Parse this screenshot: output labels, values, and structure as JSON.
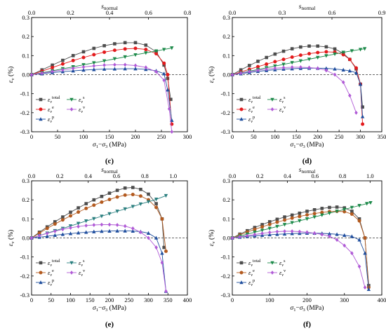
{
  "chart_data": [
    {
      "type": "line",
      "panel_label": "(c)",
      "xlabel": "σ1−σ3 (MPa)",
      "ylabel": "εv (%)",
      "top_axis_label": "snormal",
      "xlim": [
        0,
        300
      ],
      "ylim": [
        -0.3,
        0.3
      ],
      "x_ticks": [
        0,
        50,
        100,
        150,
        200,
        250,
        300
      ],
      "y_ticks": [
        -0.3,
        -0.2,
        -0.1,
        0.0,
        0.1,
        0.2,
        0.3
      ],
      "top_ticks": [
        0.0,
        0.2,
        0.4,
        0.6,
        0.8
      ],
      "top_xlim": [
        0,
        0.8
      ],
      "top_ratio": 0.00272,
      "legend": "bottom-left",
      "series": [
        {
          "name": "εv total",
          "color": "#4d4d4d",
          "marker": "square",
          "x": [
            0,
            20,
            40,
            60,
            80,
            100,
            120,
            140,
            160,
            180,
            200,
            220,
            240,
            255,
            262,
            268
          ],
          "y": [
            0,
            0.025,
            0.05,
            0.075,
            0.1,
            0.12,
            0.138,
            0.152,
            0.162,
            0.168,
            0.168,
            0.155,
            0.12,
            0.05,
            -0.02,
            -0.13
          ]
        },
        {
          "name": "εv e",
          "color": "#e31a1c",
          "marker": "circle",
          "x": [
            0,
            20,
            40,
            60,
            80,
            100,
            120,
            140,
            160,
            180,
            200,
            220,
            240,
            255,
            262,
            270
          ],
          "y": [
            0,
            0.018,
            0.037,
            0.056,
            0.074,
            0.09,
            0.105,
            0.118,
            0.128,
            0.135,
            0.138,
            0.132,
            0.11,
            0.06,
            0.0,
            -0.26
          ]
        },
        {
          "name": "εv p",
          "color": "#1f4e9e",
          "marker": "triangle-up",
          "x": [
            0,
            20,
            40,
            60,
            80,
            100,
            120,
            140,
            160,
            180,
            200,
            220,
            240,
            255,
            262,
            270
          ],
          "y": [
            0,
            0.005,
            0.011,
            0.016,
            0.02,
            0.024,
            0.027,
            0.029,
            0.03,
            0.031,
            0.031,
            0.028,
            0.02,
            0.005,
            -0.08,
            -0.24
          ]
        },
        {
          "name": "εv s",
          "color": "#1d8a4a",
          "marker": "triangle-down",
          "x": [
            0,
            20,
            40,
            60,
            80,
            100,
            120,
            140,
            160,
            180,
            200,
            220,
            240,
            255,
            270
          ],
          "y": [
            0,
            0.01,
            0.02,
            0.031,
            0.041,
            0.052,
            0.062,
            0.072,
            0.083,
            0.093,
            0.104,
            0.114,
            0.124,
            0.132,
            0.14
          ]
        },
        {
          "name": "εv v",
          "color": "#b05ad6",
          "marker": "diamond",
          "x": [
            0,
            20,
            40,
            60,
            80,
            100,
            120,
            140,
            160,
            180,
            200,
            220,
            240,
            255,
            265,
            270
          ],
          "y": [
            0,
            0.008,
            0.017,
            0.025,
            0.033,
            0.04,
            0.046,
            0.05,
            0.052,
            0.052,
            0.048,
            0.038,
            0.015,
            -0.03,
            -0.18,
            -0.3
          ]
        }
      ]
    },
    {
      "type": "line",
      "panel_label": "(d)",
      "xlabel": "σ1−σ3 (MPa)",
      "ylabel": "εv (%)",
      "top_axis_label": "snormal",
      "xlim": [
        0,
        350
      ],
      "ylim": [
        -0.3,
        0.3
      ],
      "x_ticks": [
        0,
        50,
        100,
        150,
        200,
        250,
        300,
        350
      ],
      "y_ticks": [
        -0.3,
        -0.2,
        -0.1,
        0.0,
        0.1,
        0.2,
        0.3
      ],
      "top_ticks": [
        0.0,
        0.3,
        0.6,
        0.9
      ],
      "top_xlim": [
        0,
        0.9
      ],
      "top_ratio": 0.00271,
      "legend": "bottom-left",
      "series": [
        {
          "name": "εv total",
          "color": "#4d4d4d",
          "marker": "square",
          "x": [
            0,
            20,
            40,
            60,
            80,
            100,
            120,
            140,
            160,
            180,
            200,
            220,
            240,
            260,
            275,
            290,
            300,
            305
          ],
          "y": [
            0,
            0.025,
            0.048,
            0.07,
            0.09,
            0.108,
            0.123,
            0.136,
            0.145,
            0.15,
            0.15,
            0.146,
            0.135,
            0.112,
            0.08,
            0.03,
            -0.05,
            -0.17
          ]
        },
        {
          "name": "εv e",
          "color": "#e31a1c",
          "marker": "circle",
          "x": [
            0,
            20,
            40,
            60,
            80,
            100,
            120,
            140,
            160,
            180,
            200,
            220,
            240,
            260,
            275,
            290,
            300,
            305
          ],
          "y": [
            0,
            0.014,
            0.028,
            0.042,
            0.055,
            0.068,
            0.08,
            0.092,
            0.102,
            0.11,
            0.116,
            0.12,
            0.118,
            0.105,
            0.08,
            0.035,
            -0.05,
            -0.26
          ]
        },
        {
          "name": "εv p",
          "color": "#1f4e9e",
          "marker": "triangle-up",
          "x": [
            0,
            20,
            40,
            60,
            80,
            100,
            120,
            140,
            160,
            180,
            200,
            220,
            240,
            260,
            275,
            290,
            300,
            305
          ],
          "y": [
            0,
            0.005,
            0.011,
            0.017,
            0.022,
            0.026,
            0.029,
            0.031,
            0.033,
            0.034,
            0.034,
            0.033,
            0.03,
            0.025,
            0.02,
            0.01,
            -0.05,
            -0.22
          ]
        },
        {
          "name": "εv s",
          "color": "#1d8a4a",
          "marker": "triangle-down",
          "x": [
            0,
            20,
            40,
            60,
            80,
            100,
            120,
            140,
            160,
            180,
            200,
            220,
            240,
            260,
            280,
            300,
            310
          ],
          "y": [
            0,
            0.009,
            0.018,
            0.027,
            0.036,
            0.045,
            0.054,
            0.063,
            0.072,
            0.081,
            0.09,
            0.099,
            0.108,
            0.117,
            0.125,
            0.132,
            0.136
          ]
        },
        {
          "name": "εv v",
          "color": "#b05ad6",
          "marker": "diamond",
          "x": [
            0,
            20,
            40,
            60,
            80,
            100,
            120,
            140,
            160,
            180,
            200,
            220,
            240,
            260,
            275,
            290
          ],
          "y": [
            0,
            0.008,
            0.016,
            0.023,
            0.029,
            0.034,
            0.037,
            0.039,
            0.039,
            0.037,
            0.033,
            0.022,
            0.0,
            -0.04,
            -0.11,
            -0.2
          ]
        }
      ]
    },
    {
      "type": "line",
      "panel_label": "(e)",
      "xlabel": "σ1−σ3 (MPa)",
      "ylabel": "εv (%)",
      "top_axis_label": "snormal",
      "xlim": [
        0,
        400
      ],
      "ylim": [
        -0.3,
        0.3
      ],
      "x_ticks": [
        0,
        50,
        100,
        150,
        200,
        250,
        300,
        350,
        400
      ],
      "y_ticks": [
        -0.3,
        -0.2,
        -0.1,
        0.0,
        0.1,
        0.2,
        0.3
      ],
      "top_ticks": [
        0.0,
        0.2,
        0.4,
        0.6,
        0.8,
        1.0
      ],
      "top_xlim": [
        0,
        1.1
      ],
      "top_ratio": 0.00271,
      "legend": "bottom-left",
      "series": [
        {
          "name": "εv total",
          "color": "#4d4d4d",
          "marker": "square",
          "x": [
            0,
            20,
            40,
            60,
            80,
            100,
            120,
            140,
            160,
            180,
            200,
            220,
            240,
            260,
            280,
            300,
            320,
            335,
            340
          ],
          "y": [
            0,
            0.03,
            0.058,
            0.085,
            0.11,
            0.135,
            0.158,
            0.18,
            0.2,
            0.218,
            0.235,
            0.25,
            0.262,
            0.265,
            0.255,
            0.23,
            0.18,
            0.1,
            -0.05
          ]
        },
        {
          "name": "εv e",
          "color": "#b35a1f",
          "marker": "circle",
          "x": [
            0,
            20,
            40,
            60,
            80,
            100,
            120,
            140,
            160,
            180,
            200,
            220,
            240,
            260,
            280,
            300,
            320,
            335,
            345
          ],
          "y": [
            0,
            0.025,
            0.05,
            0.073,
            0.095,
            0.116,
            0.136,
            0.155,
            0.172,
            0.188,
            0.202,
            0.215,
            0.225,
            0.228,
            0.22,
            0.2,
            0.16,
            0.1,
            -0.07
          ]
        },
        {
          "name": "εv p",
          "color": "#1f4e9e",
          "marker": "triangle-up",
          "x": [
            0,
            20,
            40,
            60,
            80,
            100,
            120,
            140,
            160,
            180,
            200,
            220,
            240,
            260,
            280,
            300,
            320,
            335,
            345
          ],
          "y": [
            0,
            0.004,
            0.009,
            0.014,
            0.019,
            0.023,
            0.027,
            0.03,
            0.033,
            0.035,
            0.036,
            0.037,
            0.037,
            0.036,
            0.033,
            0.025,
            0.0,
            -0.08,
            -0.28
          ]
        },
        {
          "name": "εv s",
          "color": "#2a7f7f",
          "marker": "triangle-down",
          "x": [
            0,
            20,
            40,
            60,
            80,
            100,
            120,
            140,
            160,
            180,
            200,
            220,
            240,
            260,
            280,
            300,
            320,
            345
          ],
          "y": [
            0,
            0.012,
            0.025,
            0.038,
            0.05,
            0.063,
            0.076,
            0.089,
            0.101,
            0.114,
            0.127,
            0.14,
            0.152,
            0.165,
            0.178,
            0.19,
            0.203,
            0.222
          ]
        },
        {
          "name": "εv v",
          "color": "#b05ad6",
          "marker": "diamond",
          "x": [
            0,
            20,
            40,
            60,
            80,
            100,
            120,
            140,
            160,
            180,
            200,
            220,
            240,
            260,
            280,
            300,
            320,
            335,
            345
          ],
          "y": [
            0,
            0.012,
            0.024,
            0.035,
            0.045,
            0.053,
            0.06,
            0.065,
            0.068,
            0.07,
            0.07,
            0.068,
            0.062,
            0.05,
            0.03,
            0.0,
            -0.05,
            -0.13,
            -0.28
          ]
        }
      ]
    },
    {
      "type": "line",
      "panel_label": "(f)",
      "xlabel": "σ1−σ3 (MPa)",
      "ylabel": "εv (%)",
      "top_axis_label": "snormal",
      "xlim": [
        0,
        400
      ],
      "ylim": [
        -0.3,
        0.3
      ],
      "x_ticks": [
        0,
        100,
        200,
        300,
        400
      ],
      "y_ticks": [
        -0.3,
        -0.2,
        -0.1,
        0.0,
        0.1,
        0.2,
        0.3
      ],
      "top_ticks": [
        0.0,
        0.2,
        0.4,
        0.6,
        0.8,
        1.0
      ],
      "top_xlim": [
        0,
        1.085
      ],
      "top_ratio": 0.002712,
      "legend": "bottom-left",
      "series": [
        {
          "name": "εv total",
          "color": "#4d4d4d",
          "marker": "square",
          "x": [
            0,
            20,
            40,
            60,
            80,
            100,
            120,
            140,
            160,
            180,
            200,
            220,
            240,
            260,
            280,
            300,
            320,
            340,
            355,
            365
          ],
          "y": [
            0,
            0.02,
            0.038,
            0.055,
            0.07,
            0.085,
            0.098,
            0.11,
            0.12,
            0.13,
            0.14,
            0.148,
            0.155,
            0.16,
            0.162,
            0.158,
            0.14,
            0.1,
            0.0,
            -0.25
          ]
        },
        {
          "name": "εv e",
          "color": "#b35a1f",
          "marker": "circle",
          "x": [
            0,
            20,
            40,
            60,
            80,
            100,
            120,
            140,
            160,
            180,
            200,
            220,
            240,
            260,
            280,
            300,
            320,
            340,
            355,
            365
          ],
          "y": [
            0,
            0.016,
            0.031,
            0.045,
            0.058,
            0.071,
            0.083,
            0.094,
            0.104,
            0.113,
            0.121,
            0.128,
            0.134,
            0.138,
            0.14,
            0.138,
            0.125,
            0.09,
            0.0,
            -0.26
          ]
        },
        {
          "name": "εv p",
          "color": "#1f4e9e",
          "marker": "triangle-up",
          "x": [
            0,
            20,
            40,
            60,
            80,
            100,
            120,
            140,
            160,
            180,
            200,
            220,
            240,
            260,
            280,
            300,
            320,
            340,
            355,
            365
          ],
          "y": [
            0,
            0.004,
            0.008,
            0.011,
            0.014,
            0.017,
            0.019,
            0.021,
            0.023,
            0.024,
            0.025,
            0.025,
            0.024,
            0.022,
            0.019,
            0.014,
            0.008,
            -0.01,
            -0.08,
            -0.27
          ]
        },
        {
          "name": "εv s",
          "color": "#1d8a4a",
          "marker": "triangle-down",
          "x": [
            0,
            20,
            40,
            60,
            80,
            100,
            120,
            140,
            160,
            180,
            200,
            220,
            240,
            260,
            280,
            300,
            320,
            340,
            360,
            370
          ],
          "y": [
            0,
            0.01,
            0.02,
            0.03,
            0.04,
            0.05,
            0.06,
            0.07,
            0.08,
            0.09,
            0.1,
            0.11,
            0.12,
            0.13,
            0.14,
            0.15,
            0.16,
            0.17,
            0.18,
            0.185
          ]
        },
        {
          "name": "εv v",
          "color": "#b05ad6",
          "marker": "diamond",
          "x": [
            0,
            20,
            40,
            60,
            80,
            100,
            120,
            140,
            160,
            180,
            200,
            220,
            240,
            260,
            280,
            300,
            320,
            340,
            355
          ],
          "y": [
            0,
            0.006,
            0.012,
            0.018,
            0.024,
            0.029,
            0.033,
            0.035,
            0.035,
            0.033,
            0.03,
            0.025,
            0.018,
            0.008,
            -0.01,
            -0.04,
            -0.08,
            -0.15,
            -0.26
          ]
        }
      ]
    }
  ]
}
